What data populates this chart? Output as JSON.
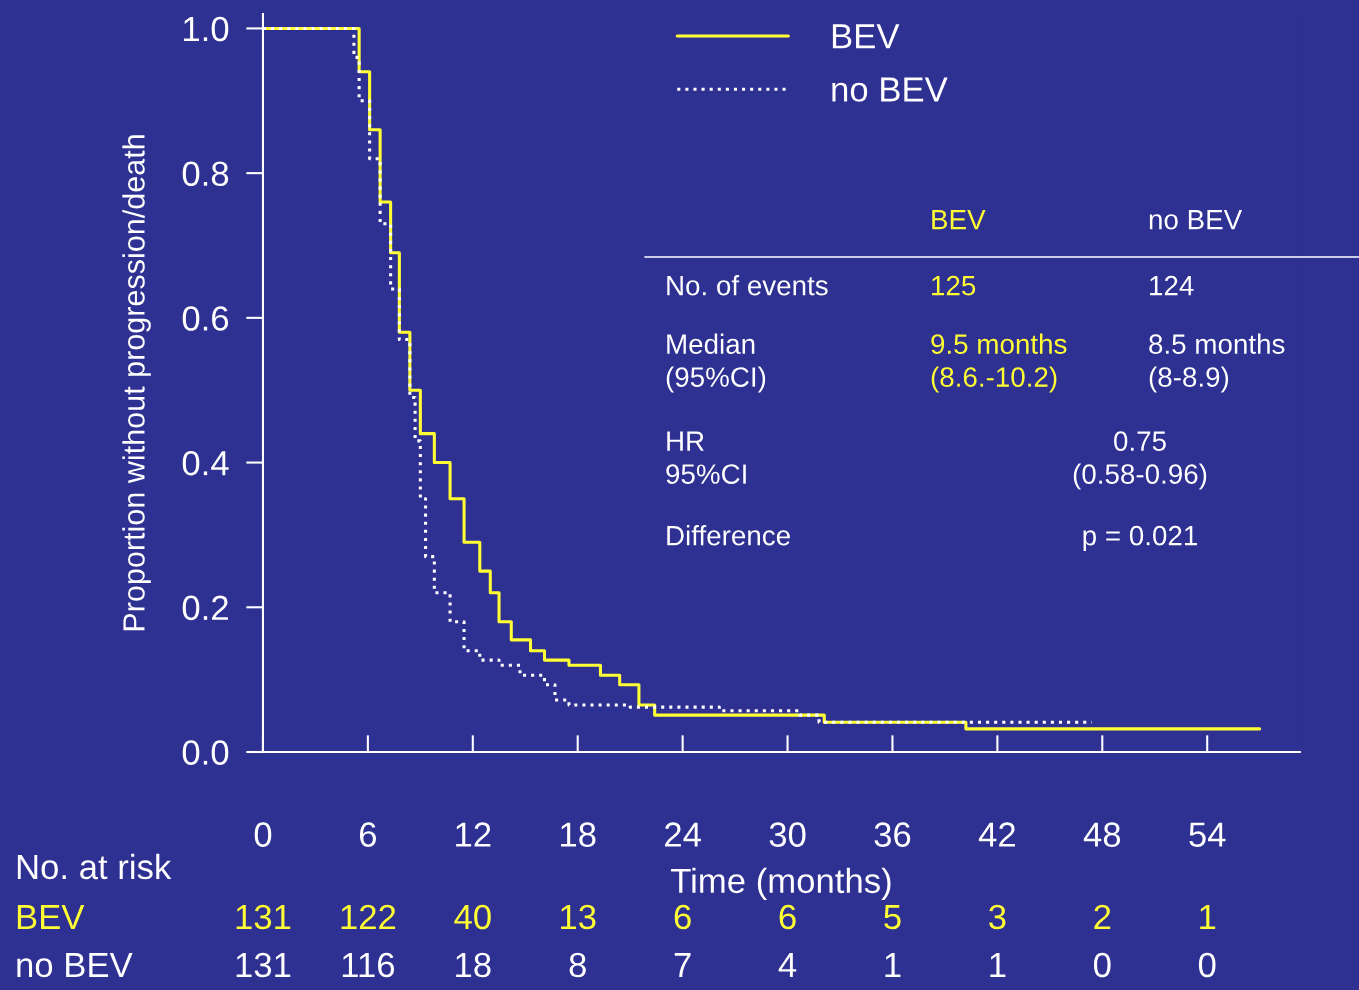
{
  "chart_data": {
    "type": "step",
    "xlabel": "Time (months)",
    "ylabel": "Proportion without progression/death",
    "xlim": [
      0,
      59.3
    ],
    "ylim": [
      0,
      1.02
    ],
    "xticks": [
      0,
      6,
      12,
      18,
      24,
      30,
      36,
      42,
      48,
      54
    ],
    "yticks": [
      {
        "value": 0,
        "label": "0.0"
      },
      {
        "value": 0.2,
        "label": "0.2"
      },
      {
        "value": 0.4,
        "label": "0.4"
      },
      {
        "value": 0.6,
        "label": "0.6"
      },
      {
        "value": 0.8,
        "label": "0.8"
      },
      {
        "value": 1.0,
        "label": "1.0"
      }
    ],
    "grid": false,
    "legend": "top",
    "marker": "none",
    "series": [
      {
        "name": "BEV",
        "color": "#ffff33",
        "line_style": "solid",
        "x": [
          0,
          5.0,
          5.5,
          6.1,
          6.7,
          7.3,
          7.8,
          8.4,
          9.0,
          9.8,
          10.7,
          11.5,
          12.4,
          13.0,
          13.5,
          14.2,
          15.3,
          16.1,
          17.5,
          19.3,
          20.4,
          21.5,
          22.4,
          32.1,
          40.2,
          57.0
        ],
        "values": [
          1.0,
          1.0,
          0.94,
          0.86,
          0.76,
          0.69,
          0.58,
          0.5,
          0.44,
          0.4,
          0.35,
          0.29,
          0.25,
          0.22,
          0.18,
          0.155,
          0.14,
          0.127,
          0.12,
          0.106,
          0.093,
          0.065,
          0.051,
          0.041,
          0.032,
          0.032
        ]
      },
      {
        "name": "no BEV",
        "color": "#ffffff",
        "line_style": "dotted",
        "x": [
          0,
          4.5,
          5.2,
          5.5,
          6.1,
          6.7,
          7.3,
          7.8,
          8.4,
          8.7,
          9.0,
          9.3,
          9.8,
          10.7,
          11.5,
          12.4,
          13.5,
          14.7,
          16.1,
          16.7,
          17.5,
          21.0,
          26.1,
          30.7,
          31.8,
          47.4
        ],
        "values": [
          1.0,
          1.0,
          0.96,
          0.9,
          0.82,
          0.73,
          0.64,
          0.57,
          0.49,
          0.43,
          0.35,
          0.27,
          0.22,
          0.18,
          0.14,
          0.127,
          0.12,
          0.106,
          0.093,
          0.072,
          0.065,
          0.062,
          0.057,
          0.051,
          0.041,
          0.041
        ]
      }
    ],
    "annotations": [
      "No. at risk",
      "BEV",
      "131",
      "122",
      "40",
      "13",
      "6",
      "6",
      "5",
      "3",
      "2",
      "1",
      "no BEV",
      "131",
      "116",
      "18",
      "8",
      "7",
      "4",
      "1",
      "1",
      "0",
      "0",
      "BEV",
      "no BEV",
      "No. of events",
      "125",
      "124",
      "Median\n(95%CI)",
      "9.5 months\n(8.6.-10.2)",
      "8.5 months\n(8-8.9)",
      "HR\n95%CI",
      "0.75\n(0.58-0.96)",
      "Difference",
      "p = 0.021"
    ]
  }
}
